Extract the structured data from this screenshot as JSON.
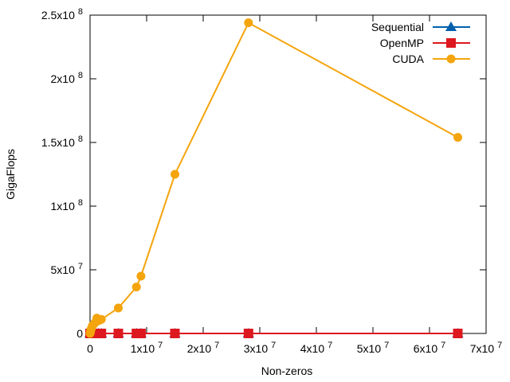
{
  "chart_data": {
    "type": "line",
    "title": "",
    "xlabel": "Non-zeros",
    "ylabel": "GigaFlops",
    "xlim": [
      0,
      70000000
    ],
    "ylim": [
      0,
      250000000
    ],
    "grid": false,
    "legend_position": "top-right",
    "x_ticks": [
      {
        "value": 0,
        "mantissa": "0",
        "exp": ""
      },
      {
        "value": 10000000,
        "mantissa": "1x10",
        "exp": "7"
      },
      {
        "value": 20000000,
        "mantissa": "2x10",
        "exp": "7"
      },
      {
        "value": 30000000,
        "mantissa": "3x10",
        "exp": "7"
      },
      {
        "value": 40000000,
        "mantissa": "4x10",
        "exp": "7"
      },
      {
        "value": 50000000,
        "mantissa": "5x10",
        "exp": "7"
      },
      {
        "value": 60000000,
        "mantissa": "6x10",
        "exp": "7"
      },
      {
        "value": 70000000,
        "mantissa": "7x10",
        "exp": "7"
      }
    ],
    "y_ticks": [
      {
        "value": 0,
        "mantissa": "0",
        "exp": ""
      },
      {
        "value": 50000000,
        "mantissa": "5x10",
        "exp": "7"
      },
      {
        "value": 100000000,
        "mantissa": "1x10",
        "exp": "8"
      },
      {
        "value": 150000000,
        "mantissa": "1.5x10",
        "exp": "8"
      },
      {
        "value": 200000000,
        "mantissa": "2x10",
        "exp": "8"
      },
      {
        "value": 250000000,
        "mantissa": "2.5x10",
        "exp": "8"
      }
    ],
    "series": [
      {
        "name": "Sequential",
        "color": "#0060ad",
        "marker": "triangle",
        "points": [
          [
            0,
            0
          ],
          [
            30000,
            0
          ],
          [
            60000,
            0
          ],
          [
            100000,
            0
          ],
          [
            150000,
            0
          ],
          [
            250000,
            0
          ],
          [
            400000,
            0
          ],
          [
            600000,
            0
          ],
          [
            800000,
            0
          ],
          [
            1000000,
            0
          ],
          [
            1500000,
            0
          ],
          [
            2000000,
            0
          ],
          [
            5000000,
            0
          ],
          [
            8200000,
            0
          ],
          [
            9000000,
            0
          ],
          [
            15000000,
            0
          ],
          [
            28000000,
            0
          ],
          [
            65000000,
            0
          ]
        ]
      },
      {
        "name": "OpenMP",
        "color": "#dd181f",
        "marker": "square",
        "points": [
          [
            0,
            0
          ],
          [
            30000,
            0
          ],
          [
            60000,
            0
          ],
          [
            100000,
            0
          ],
          [
            150000,
            0
          ],
          [
            250000,
            0
          ],
          [
            400000,
            0
          ],
          [
            600000,
            0
          ],
          [
            800000,
            0
          ],
          [
            1000000,
            0
          ],
          [
            1500000,
            0
          ],
          [
            2000000,
            0
          ],
          [
            5000000,
            0
          ],
          [
            8200000,
            0
          ],
          [
            9000000,
            0
          ],
          [
            15000000,
            0
          ],
          [
            28000000,
            0
          ],
          [
            65000000,
            0
          ]
        ]
      },
      {
        "name": "CUDA",
        "color": "#f4a40c",
        "marker": "circle",
        "points": [
          [
            0,
            0
          ],
          [
            30000,
            500000
          ],
          [
            60000,
            1000000
          ],
          [
            100000,
            2000000
          ],
          [
            150000,
            3000000
          ],
          [
            250000,
            4000000
          ],
          [
            400000,
            6000000
          ],
          [
            600000,
            7000000
          ],
          [
            800000,
            8000000
          ],
          [
            1000000,
            9000000
          ],
          [
            1200000,
            12000000
          ],
          [
            1500000,
            10000000
          ],
          [
            2000000,
            11000000
          ],
          [
            5000000,
            20000000
          ],
          [
            8200000,
            36500000
          ],
          [
            9000000,
            45000000
          ],
          [
            15000000,
            125000000
          ],
          [
            28000000,
            244000000
          ],
          [
            65000000,
            154000000
          ]
        ]
      }
    ]
  }
}
